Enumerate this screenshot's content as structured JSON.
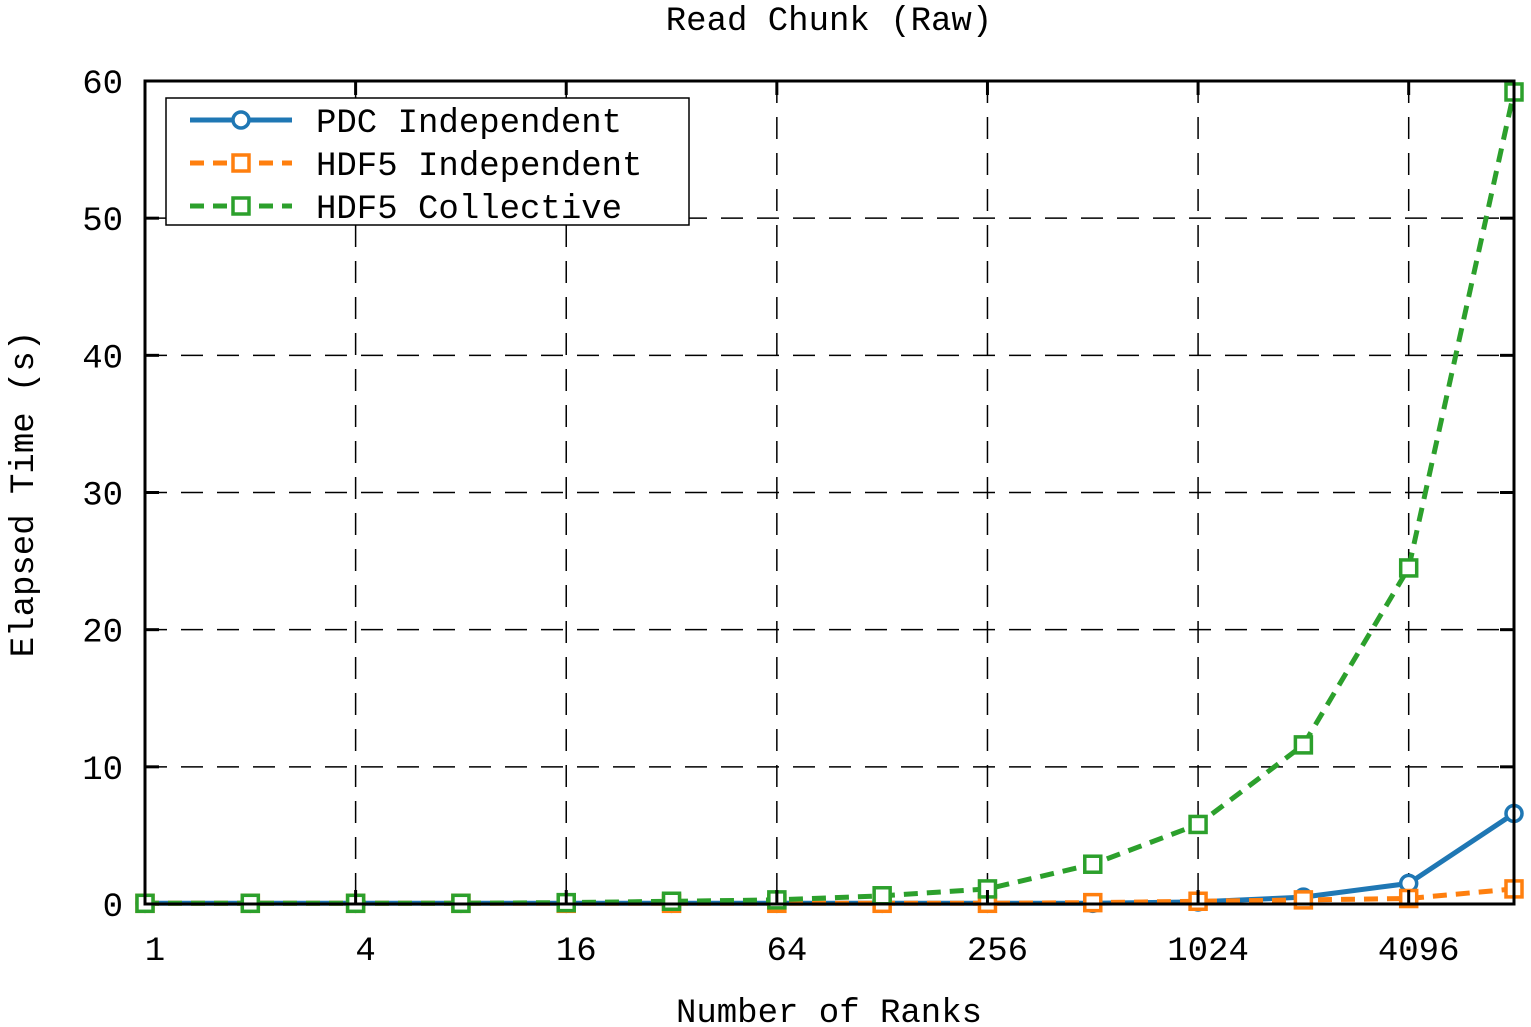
{
  "chart_data": {
    "type": "line",
    "title": "Read Chunk (Raw)",
    "xlabel": "Number of Ranks",
    "ylabel": "Elapsed Time (s)",
    "x_scale": "log2",
    "x": [
      1,
      2,
      4,
      8,
      16,
      32,
      64,
      128,
      256,
      512,
      1024,
      2048,
      4096,
      8192
    ],
    "x_ticks": [
      1,
      4,
      16,
      64,
      256,
      1024,
      4096
    ],
    "x_tick_labels": [
      "1",
      "4",
      "16",
      "64",
      "256",
      "1024",
      "4096"
    ],
    "xlim": [
      1,
      8192
    ],
    "ylim": [
      0,
      60
    ],
    "y_ticks": [
      0,
      10,
      20,
      30,
      40,
      50,
      60
    ],
    "y_tick_labels": [
      "0",
      "10",
      "20",
      "30",
      "40",
      "50",
      "60"
    ],
    "grid": true,
    "legend_position": "top-left",
    "series": [
      {
        "name": "PDC Independent",
        "color": "#1f77b4",
        "line_style": "solid",
        "marker": "circle",
        "values": [
          0.05,
          0.05,
          0.05,
          0.05,
          0.05,
          0.05,
          0.05,
          0.05,
          0.05,
          0.05,
          0.15,
          0.5,
          1.5,
          6.6
        ]
      },
      {
        "name": "HDF5 Independent",
        "color": "#ff7f0e",
        "line_style": "dashed",
        "marker": "square",
        "values": [
          0.05,
          0.05,
          0.05,
          0.05,
          0.05,
          0.05,
          0.05,
          0.05,
          0.05,
          0.1,
          0.2,
          0.3,
          0.4,
          1.1
        ]
      },
      {
        "name": "HDF5 Collective",
        "color": "#2ca02c",
        "line_style": "dashed",
        "marker": "square",
        "values": [
          0.05,
          0.05,
          0.05,
          0.05,
          0.1,
          0.2,
          0.3,
          0.6,
          1.1,
          2.9,
          5.8,
          11.6,
          24.5,
          59.2
        ]
      }
    ]
  }
}
